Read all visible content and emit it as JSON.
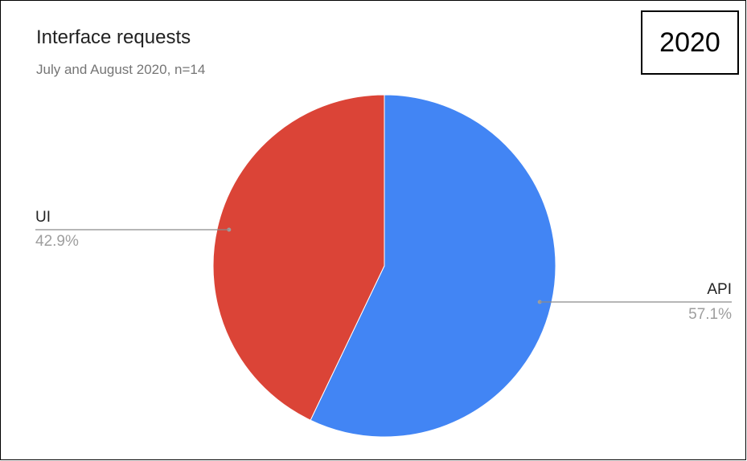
{
  "chart_data": {
    "type": "pie",
    "title": "Interface requests",
    "subtitle": "July and August 2020, n=14",
    "badge": "2020",
    "slices": [
      {
        "label": "API",
        "value": 57.1,
        "percent_label": "57.1%",
        "color": "#4285F4"
      },
      {
        "label": "UI",
        "value": 42.9,
        "percent_label": "42.9%",
        "color": "#DB4437"
      }
    ],
    "start_angle_deg": 0,
    "direction": "clockwise"
  }
}
